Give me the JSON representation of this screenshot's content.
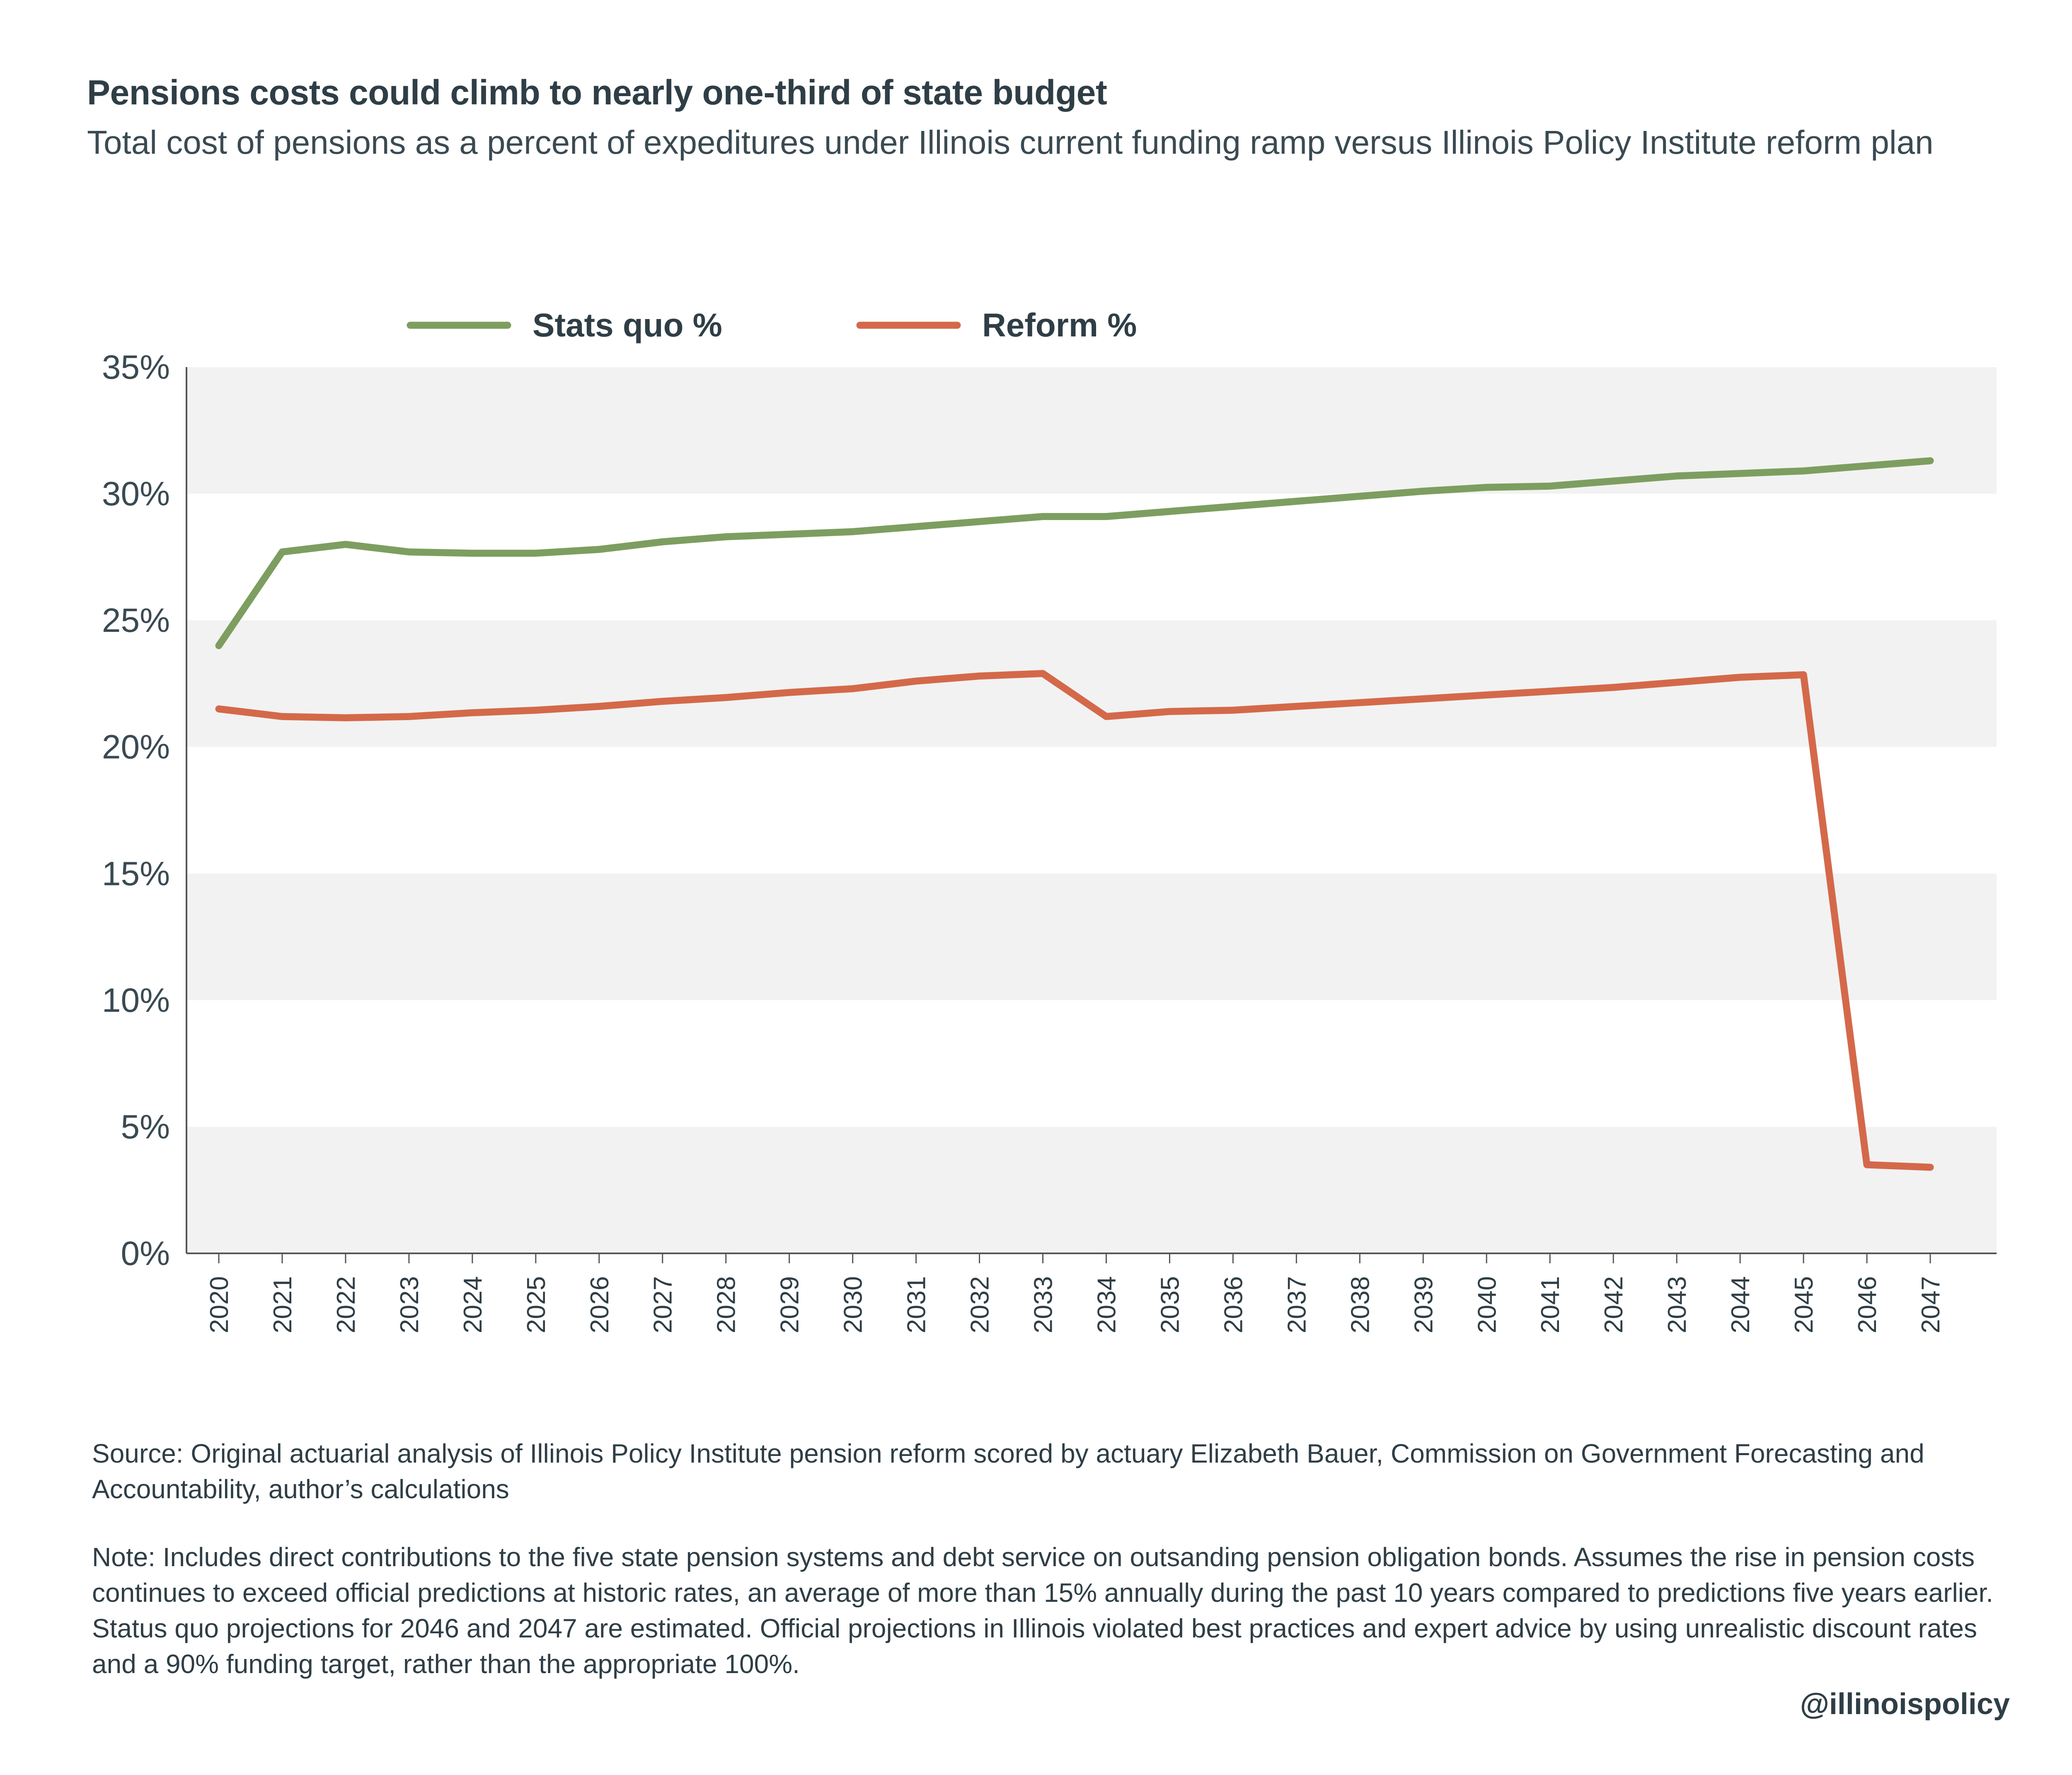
{
  "header": {
    "title": "Pensions costs could climb to nearly one-third of state budget",
    "subtitle": "Total cost of pensions as a percent of expeditures under Illinois current funding ramp versus Illinois Policy Institute reform plan"
  },
  "chart_data": {
    "type": "line",
    "x": [
      "2020",
      "2021",
      "2022",
      "2023",
      "2024",
      "2025",
      "2026",
      "2027",
      "2028",
      "2029",
      "2030",
      "2031",
      "2032",
      "2033",
      "2034",
      "2035",
      "2036",
      "2037",
      "2038",
      "2039",
      "2040",
      "2041",
      "2042",
      "2043",
      "2044",
      "2045",
      "2046",
      "2047"
    ],
    "series": [
      {
        "name": "Stats quo %",
        "color": "#7d9e60",
        "values": [
          24.0,
          27.7,
          28.0,
          27.7,
          27.65,
          27.65,
          27.8,
          28.1,
          28.3,
          28.4,
          28.5,
          28.7,
          28.9,
          29.1,
          29.1,
          29.3,
          29.5,
          29.7,
          29.9,
          30.1,
          30.25,
          30.3,
          30.5,
          30.7,
          30.8,
          30.9,
          31.1,
          31.3
        ]
      },
      {
        "name": "Reform %",
        "color": "#d4694a",
        "values": [
          21.5,
          21.2,
          21.15,
          21.2,
          21.35,
          21.45,
          21.6,
          21.8,
          21.95,
          22.15,
          22.3,
          22.6,
          22.8,
          22.9,
          21.2,
          21.4,
          21.45,
          21.6,
          21.75,
          21.9,
          22.05,
          22.2,
          22.35,
          22.55,
          22.75,
          22.85,
          3.5,
          3.4
        ]
      }
    ],
    "y_ticks": [
      "0%",
      "5%",
      "10%",
      "15%",
      "20%",
      "25%",
      "30%",
      "35%"
    ],
    "ylim": [
      0,
      35
    ],
    "y_tick_step": 5,
    "grid": "alternating bands",
    "band_color": "#f2f2f2",
    "legend_position": "top-center",
    "title": "",
    "xlabel": "",
    "ylabel": ""
  },
  "footer": {
    "source": "Source: Original actuarial analysis of Illinois Policy Institute pension reform scored by actuary Elizabeth Bauer, Commission on Government Forecasting and Accountability, author’s calculations",
    "note": "Note: Includes direct contributions to the five state pension systems and debt service on outsanding pension obligation bonds. Assumes the rise in pension costs continues to exceed official predictions at historic rates, an average of more than 15% annually during the past 10 years compared to predictions five years earlier. Status quo projections for 2046 and 2047 are estimated. Official projections in Illinois violated best practices and expert advice by using unrealistic discount rates and a 90% funding target, rather than the appropriate 100%.",
    "handle": "@illinoispolicy"
  }
}
